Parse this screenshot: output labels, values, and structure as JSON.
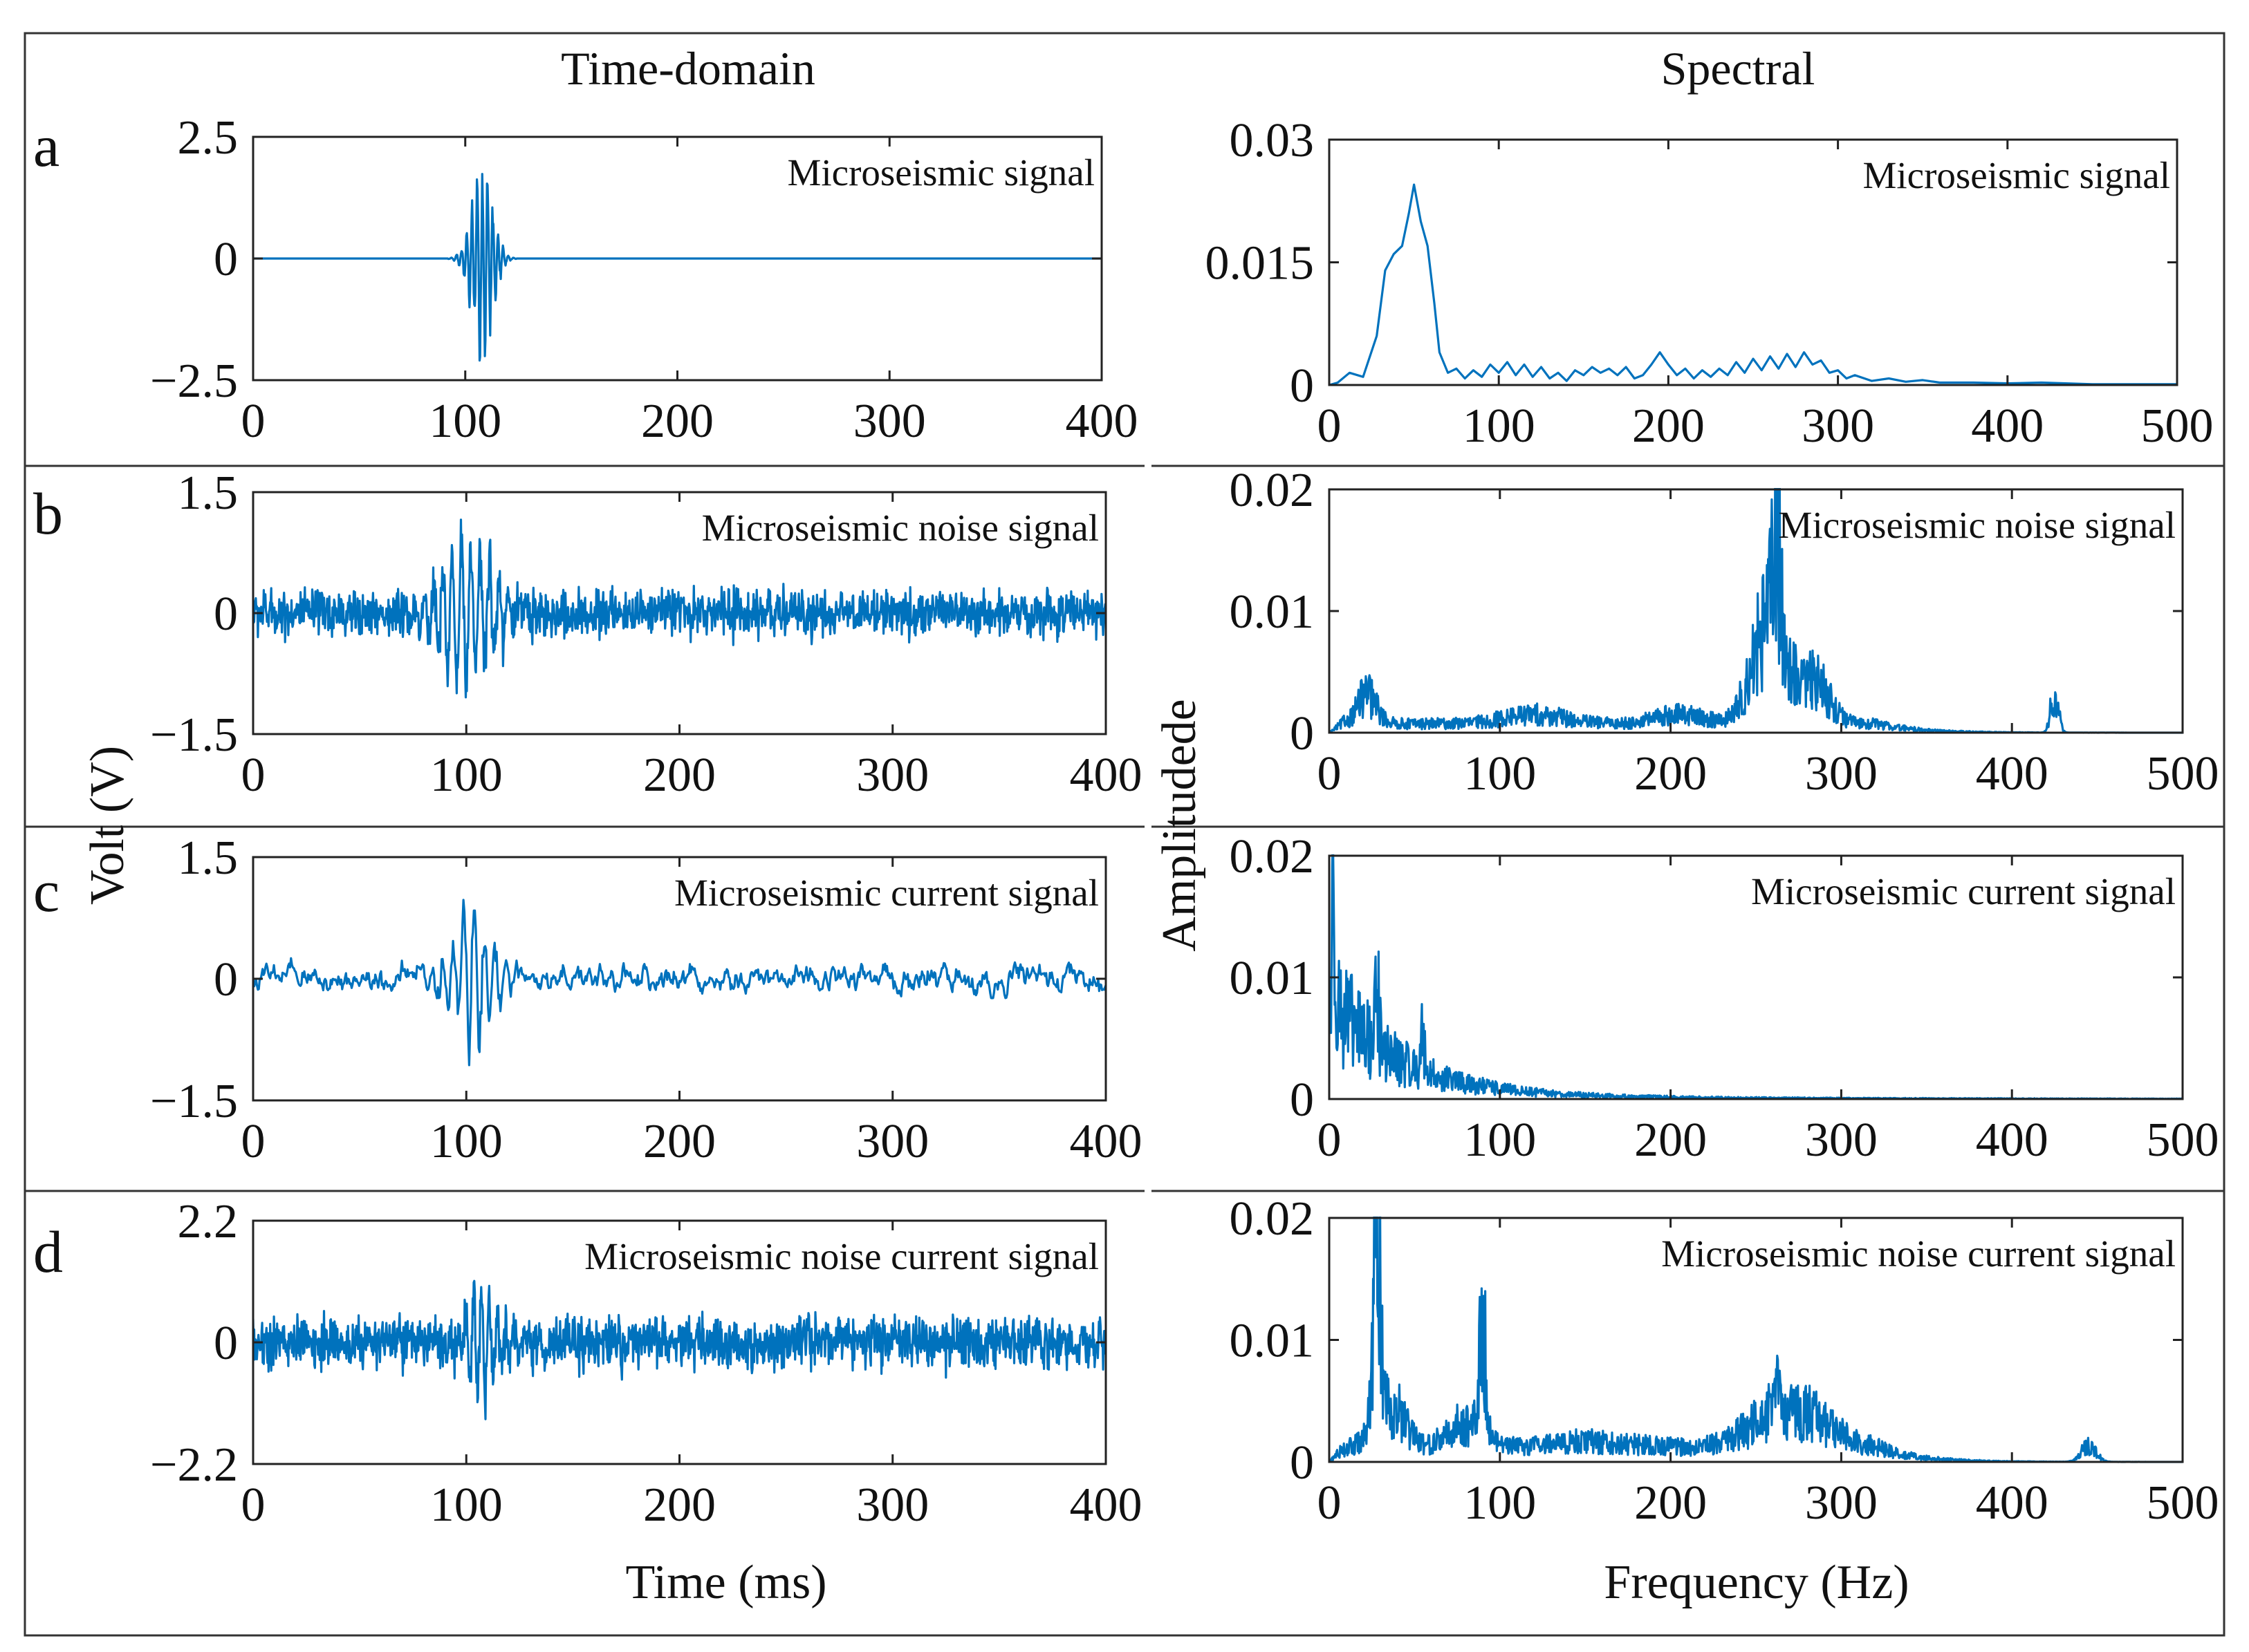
{
  "figure": {
    "col_titles": [
      "Time-domain",
      "Spectral"
    ],
    "row_labels": [
      "a",
      "b",
      "c",
      "d"
    ],
    "y_label_left": "Volt (V)",
    "y_label_right": "Amplitudede",
    "x_label_left": "Time (ms)",
    "x_label_right": "Frequency (Hz)",
    "line_color": "#0072bd"
  },
  "chart_data": [
    {
      "id": "a-time",
      "type": "line",
      "row": "a",
      "column": "Time-domain",
      "annotation": "Microseismic signal",
      "xlabel": "Time (ms)",
      "ylabel": "Volt (V)",
      "xlim": [
        0,
        400
      ],
      "ylim": [
        -2.5,
        2.5
      ],
      "xticks": [
        0,
        100,
        200,
        300,
        400
      ],
      "yticks": [
        -2.5,
        0,
        2.5
      ],
      "ytick_labels": [
        "−2.5",
        "0",
        "2.5"
      ],
      "series": [
        {
          "name": "Microseismic signal",
          "kind": "burst",
          "baseline": 0.04,
          "events": [
            {
              "t": 108,
              "width": 10,
              "amp": 2.4,
              "freq": 0.9
            }
          ]
        }
      ]
    },
    {
      "id": "a-spec",
      "type": "line",
      "row": "a",
      "column": "Spectral",
      "annotation": "Microseismic signal",
      "xlabel": "Frequency (Hz)",
      "ylabel": "Amplitudede",
      "xlim": [
        0,
        500
      ],
      "ylim": [
        0,
        0.03
      ],
      "xticks": [
        0,
        100,
        200,
        300,
        400,
        500
      ],
      "yticks": [
        0,
        0.015,
        0.03
      ],
      "ytick_labels": [
        "0",
        "0.015",
        "0.03"
      ],
      "series": [
        {
          "name": "Microseismic signal",
          "kind": "curve",
          "points": [
            [
              0,
              0
            ],
            [
              5,
              0.0003
            ],
            [
              12,
              0.0015
            ],
            [
              20,
              0.001
            ],
            [
              28,
              0.006
            ],
            [
              33,
              0.014
            ],
            [
              38,
              0.016
            ],
            [
              43,
              0.017
            ],
            [
              47,
              0.021
            ],
            [
              50,
              0.0245
            ],
            [
              54,
              0.02
            ],
            [
              58,
              0.017
            ],
            [
              62,
              0.01
            ],
            [
              65,
              0.004
            ],
            [
              70,
              0.0015
            ],
            [
              75,
              0.002
            ],
            [
              80,
              0.0008
            ],
            [
              85,
              0.0018
            ],
            [
              90,
              0.001
            ],
            [
              95,
              0.0025
            ],
            [
              100,
              0.0015
            ],
            [
              105,
              0.0028
            ],
            [
              110,
              0.0012
            ],
            [
              115,
              0.0025
            ],
            [
              120,
              0.001
            ],
            [
              125,
              0.0022
            ],
            [
              130,
              0.0008
            ],
            [
              135,
              0.0015
            ],
            [
              140,
              0.0005
            ],
            [
              145,
              0.0018
            ],
            [
              150,
              0.0012
            ],
            [
              155,
              0.0022
            ],
            [
              160,
              0.0015
            ],
            [
              165,
              0.002
            ],
            [
              170,
              0.0012
            ],
            [
              175,
              0.0022
            ],
            [
              180,
              0.0008
            ],
            [
              185,
              0.0012
            ],
            [
              190,
              0.0025
            ],
            [
              195,
              0.004
            ],
            [
              200,
              0.0025
            ],
            [
              205,
              0.0012
            ],
            [
              210,
              0.002
            ],
            [
              215,
              0.0008
            ],
            [
              220,
              0.0018
            ],
            [
              225,
              0.001
            ],
            [
              230,
              0.002
            ],
            [
              235,
              0.0012
            ],
            [
              240,
              0.0028
            ],
            [
              245,
              0.0015
            ],
            [
              250,
              0.0032
            ],
            [
              255,
              0.0018
            ],
            [
              260,
              0.0035
            ],
            [
              265,
              0.002
            ],
            [
              270,
              0.0038
            ],
            [
              275,
              0.0022
            ],
            [
              280,
              0.004
            ],
            [
              285,
              0.0025
            ],
            [
              290,
              0.003
            ],
            [
              295,
              0.0015
            ],
            [
              300,
              0.0018
            ],
            [
              305,
              0.0008
            ],
            [
              310,
              0.0012
            ],
            [
              320,
              0.0005
            ],
            [
              330,
              0.0008
            ],
            [
              340,
              0.0004
            ],
            [
              350,
              0.0006
            ],
            [
              360,
              0.0003
            ],
            [
              380,
              0.0003
            ],
            [
              400,
              0.0002
            ],
            [
              420,
              0.0003
            ],
            [
              450,
              0.0001
            ],
            [
              500,
              0.0001
            ]
          ]
        }
      ]
    },
    {
      "id": "b-time",
      "type": "line",
      "row": "b",
      "column": "Time-domain",
      "annotation": "Microseismic noise signal",
      "xlabel": "Time (ms)",
      "ylabel": "Volt (V)",
      "xlim": [
        0,
        400
      ],
      "ylim": [
        -1.5,
        1.5
      ],
      "xticks": [
        0,
        100,
        200,
        300,
        400
      ],
      "yticks": [
        -1.5,
        0,
        1.5
      ],
      "ytick_labels": [
        "−1.5",
        "0",
        "1.5"
      ],
      "series": [
        {
          "name": "Microseismic noise signal",
          "kind": "noise",
          "baseline": 0.42,
          "events": [
            {
              "t": 100,
              "width": 28,
              "amp": 1.05,
              "freq": 0.5
            }
          ]
        }
      ]
    },
    {
      "id": "b-spec",
      "type": "line",
      "row": "b",
      "column": "Spectral",
      "annotation": "Microseismic noise signal",
      "xlabel": "Frequency (Hz)",
      "ylabel": "Amplitudede",
      "xlim": [
        0,
        500
      ],
      "ylim": [
        0,
        0.02
      ],
      "xticks": [
        0,
        100,
        200,
        300,
        400,
        500
      ],
      "yticks": [
        0,
        0.01,
        0.02
      ],
      "ytick_labels": [
        "0",
        "0.01",
        "0.02"
      ],
      "series": [
        {
          "name": "Microseismic noise signal",
          "kind": "spectrum",
          "base": 0.0008,
          "peaks": [
            {
              "f": 22,
              "w": 8,
              "a": 0.0025
            },
            {
              "f": 120,
              "w": 25,
              "a": 0.0008
            },
            {
              "f": 205,
              "w": 20,
              "a": 0.0008
            },
            {
              "f": 258,
              "w": 14,
              "a": 0.009
            },
            {
              "f": 262,
              "w": 3,
              "a": 0.0085
            },
            {
              "f": 285,
              "w": 12,
              "a": 0.0035
            },
            {
              "f": 425,
              "w": 3,
              "a": 0.0038
            }
          ]
        }
      ]
    },
    {
      "id": "c-time",
      "type": "line",
      "row": "c",
      "column": "Time-domain",
      "annotation": "Microseismic current signal",
      "xlabel": "Time (ms)",
      "ylabel": "Volt (V)",
      "xlim": [
        0,
        400
      ],
      "ylim": [
        -1.5,
        1.5
      ],
      "xticks": [
        0,
        100,
        200,
        300,
        400
      ],
      "yticks": [
        -1.5,
        0,
        1.5
      ],
      "ytick_labels": [
        "−1.5",
        "0",
        "1.5"
      ],
      "series": [
        {
          "name": "Microseismic current signal",
          "kind": "lowpass",
          "baseline": 0.22,
          "events": [
            {
              "t": 103,
              "width": 18,
              "amp": 1.15,
              "freq": 0.45
            }
          ]
        }
      ]
    },
    {
      "id": "c-spec",
      "type": "line",
      "row": "c",
      "column": "Spectral",
      "annotation": "Microseismic current signal",
      "xlabel": "Frequency (Hz)",
      "ylabel": "Amplitudede",
      "xlim": [
        0,
        500
      ],
      "ylim": [
        0,
        0.02
      ],
      "xticks": [
        0,
        100,
        200,
        300,
        400,
        500
      ],
      "yticks": [
        0,
        0.01,
        0.02
      ],
      "ytick_labels": [
        "0",
        "0.01",
        "0.02"
      ],
      "series": [
        {
          "name": "Microseismic current signal",
          "kind": "decay",
          "a0": 0.0085,
          "tau": 40,
          "floor": 0.0003,
          "spikes": [
            {
              "f": 3,
              "a": 0.016
            },
            {
              "f": 28,
              "a": 0.01
            },
            {
              "f": 55,
              "a": 0.0055
            }
          ]
        }
      ]
    },
    {
      "id": "d-time",
      "type": "line",
      "row": "d",
      "column": "Time-domain",
      "annotation": "Microseismic noise current signal",
      "xlabel": "Time (ms)",
      "ylabel": "Volt (V)",
      "xlim": [
        0,
        400
      ],
      "ylim": [
        -2.2,
        2.2
      ],
      "xticks": [
        0,
        100,
        200,
        300,
        400
      ],
      "yticks": [
        -2.2,
        0,
        2.2
      ],
      "ytick_labels": [
        "−2.2",
        "0",
        "2.2"
      ],
      "series": [
        {
          "name": "Microseismic noise current signal",
          "kind": "noise",
          "baseline": 0.7,
          "events": [
            {
              "t": 107,
              "width": 15,
              "amp": 1.2,
              "freq": 0.6
            }
          ]
        }
      ]
    },
    {
      "id": "d-spec",
      "type": "line",
      "row": "d",
      "column": "Spectral",
      "annotation": "Microseismic noise current signal",
      "xlabel": "Frequency (Hz)",
      "ylabel": "Amplitudede",
      "xlim": [
        0,
        500
      ],
      "ylim": [
        0,
        0.02
      ],
      "xticks": [
        0,
        100,
        200,
        300,
        400,
        500
      ],
      "yticks": [
        0,
        0.01,
        0.02
      ],
      "ytick_labels": [
        "0",
        "0.01",
        "0.02"
      ],
      "series": [
        {
          "name": "Microseismic noise current signal",
          "kind": "spectrum",
          "base": 0.0012,
          "peaks": [
            {
              "f": 28,
              "w": 3,
              "a": 0.017
            },
            {
              "f": 35,
              "w": 12,
              "a": 0.004
            },
            {
              "f": 80,
              "w": 15,
              "a": 0.0022
            },
            {
              "f": 90,
              "w": 2.5,
              "a": 0.011
            },
            {
              "f": 150,
              "w": 40,
              "a": 0.0006
            },
            {
              "f": 270,
              "w": 30,
              "a": 0.0035
            },
            {
              "f": 262,
              "w": 2.5,
              "a": 0.007
            },
            {
              "f": 445,
              "w": 6,
              "a": 0.0014
            }
          ]
        }
      ]
    }
  ]
}
